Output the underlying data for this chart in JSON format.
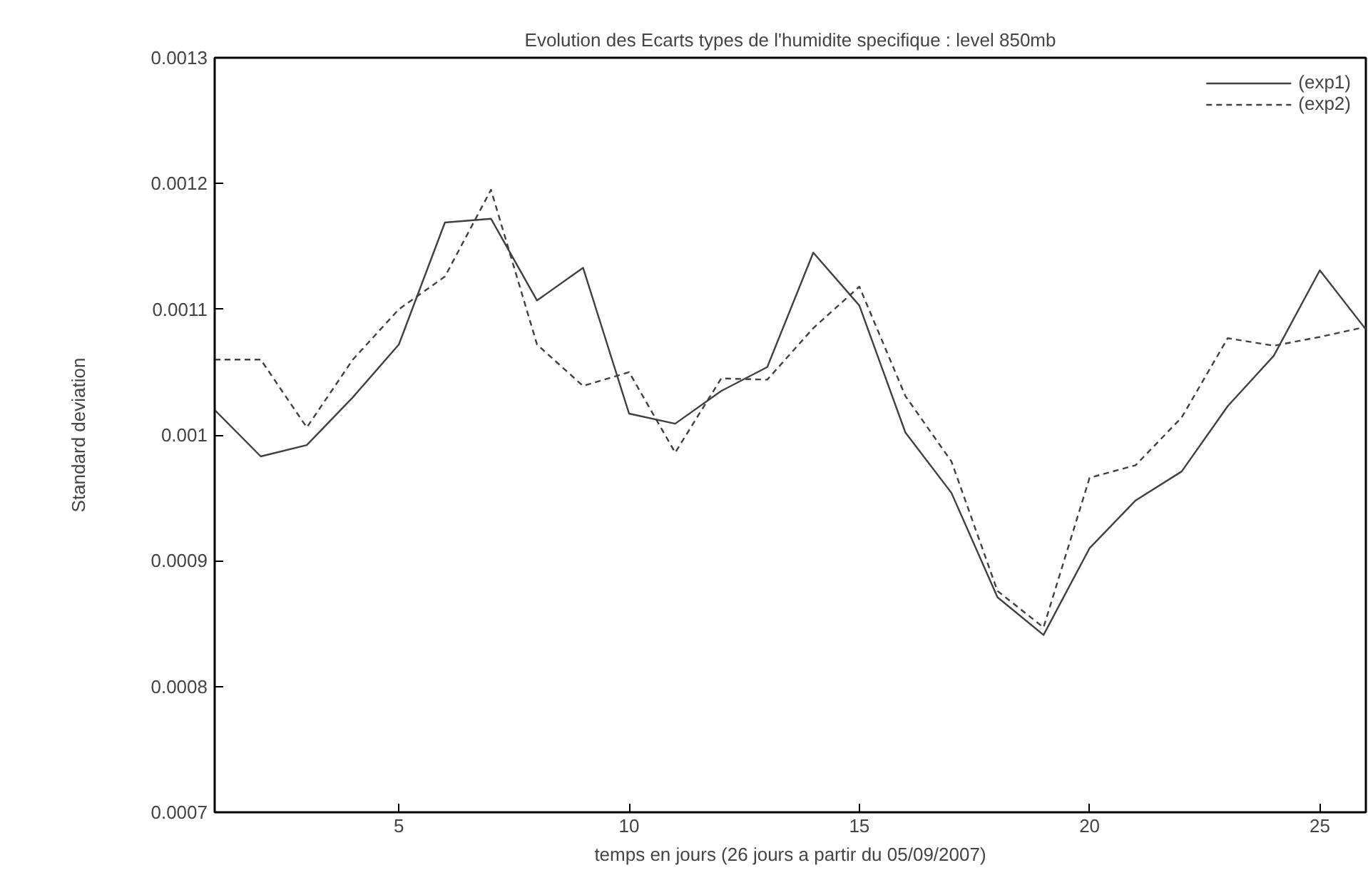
{
  "chart_data": {
    "type": "line",
    "title": "Evolution des Ecarts types de l'humidite specifique : level 850mb",
    "xlabel": "temps en jours (26 jours a partir du 05/09/2007)",
    "ylabel": "Standard deviation",
    "x": [
      1,
      2,
      3,
      4,
      5,
      6,
      7,
      8,
      9,
      10,
      11,
      12,
      13,
      14,
      15,
      16,
      17,
      18,
      19,
      20,
      21,
      22,
      23,
      24,
      25,
      26
    ],
    "series": [
      {
        "name": "(exp1)",
        "color": "#404040",
        "line_style": "solid",
        "values": [
          0.00102,
          0.000983,
          0.000992,
          0.00103,
          0.001072,
          0.001169,
          0.001172,
          0.001107,
          0.001133,
          0.001017,
          0.001009,
          0.001035,
          0.001054,
          0.001145,
          0.001103,
          0.001002,
          0.000954,
          0.000871,
          0.000841,
          0.00091,
          0.000948,
          0.000971,
          0.001023,
          0.001063,
          0.001131,
          0.001084
        ]
      },
      {
        "name": "(exp2)",
        "color": "#404040",
        "line_style": "dashed",
        "values": [
          0.00106,
          0.00106,
          0.001006,
          0.00106,
          0.0011,
          0.001126,
          0.001195,
          0.001072,
          0.001039,
          0.00105,
          0.000986,
          0.001045,
          0.001044,
          0.001085,
          0.001118,
          0.001031,
          0.000979,
          0.000876,
          0.000847,
          0.000966,
          0.000976,
          0.001014,
          0.001077,
          0.001071,
          0.001078,
          0.001086
        ]
      }
    ],
    "xlim": [
      1,
      26
    ],
    "xticks": [
      5,
      10,
      15,
      20,
      25
    ],
    "ylim": [
      0.0007,
      0.0013
    ],
    "yticks": [
      0.0007,
      0.0008,
      0.0009,
      0.001,
      0.0011,
      0.0012,
      0.0013
    ],
    "grid": false,
    "legend": "top right"
  }
}
